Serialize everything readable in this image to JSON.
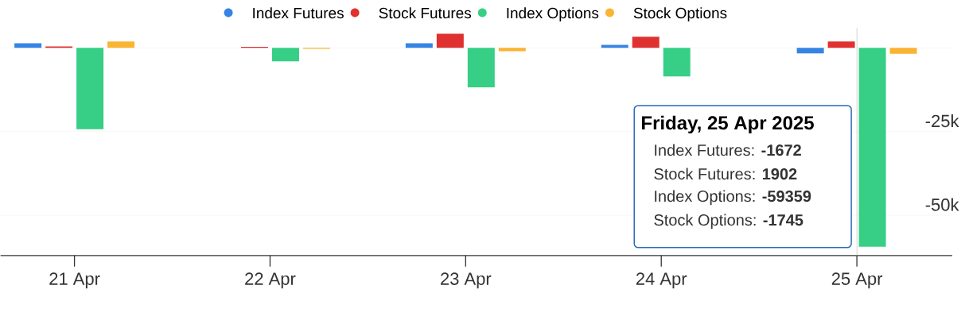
{
  "chart_data": {
    "type": "bar",
    "categories": [
      "21 Apr",
      "22 Apr",
      "23 Apr",
      "24 Apr",
      "25 Apr"
    ],
    "series": [
      {
        "name": "Index Futures",
        "color": "#3584e4",
        "values": [
          1400,
          0,
          1400,
          900,
          -1672
        ]
      },
      {
        "name": "Stock Futures",
        "color": "#e03131",
        "values": [
          400,
          300,
          4200,
          3300,
          1902
        ]
      },
      {
        "name": "Index Options",
        "color": "#36cf85",
        "values": [
          -24300,
          -4000,
          -11800,
          -8500,
          -59359
        ]
      },
      {
        "name": "Stock Options",
        "color": "#fab432",
        "values": [
          1900,
          -300,
          -1000,
          0,
          -1745
        ]
      }
    ],
    "ylim": [
      -62000,
      6000
    ],
    "yticks": [
      {
        "value": -50000,
        "label": "-50k"
      },
      {
        "value": -25000,
        "label": "-25k"
      },
      {
        "value": 0,
        "label": null
      }
    ],
    "grid": "y",
    "legend": "top",
    "ref_lines": [
      {
        "axis": "x",
        "value": "25 Apr",
        "color": "#c8c8c8"
      }
    ],
    "annotations": [
      "Friday, 25 Apr 2025",
      "Index Futures: **-1672**",
      "Stock Futures: **1902**",
      "Index Options: **-59359**",
      "Stock Options: **-1745**"
    ]
  }
}
